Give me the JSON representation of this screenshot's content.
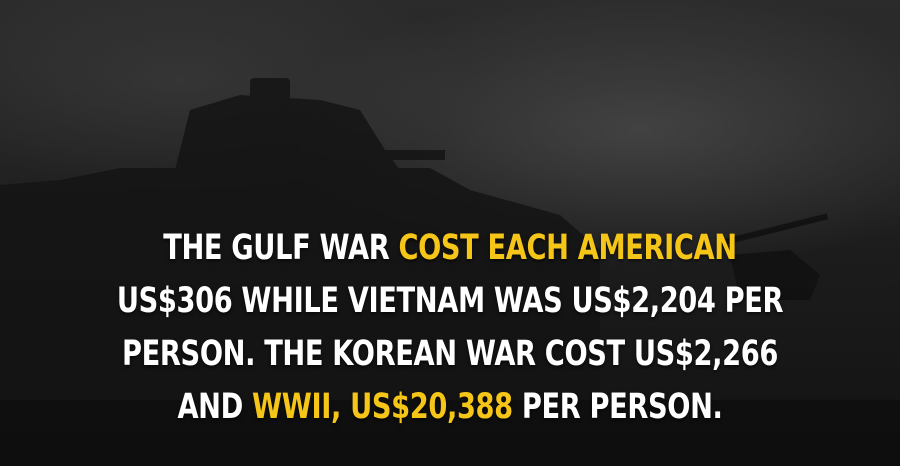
{
  "fact": {
    "line1": {
      "a": "THE GULF WAR ",
      "b": "COST EACH AMERICAN"
    },
    "line2": "US$306 WHILE VIETNAM WAS US$2,204 PER",
    "line3": "PERSON. THE KOREAN WAR COST US$2,266",
    "line4": {
      "a": "AND ",
      "b": "WWII, US$20,388",
      "c": " PER PERSON."
    }
  },
  "colors": {
    "text": "#ffffff",
    "highlight": "#f5c518",
    "background": "#1c1c1c"
  },
  "background_image": "tank-silhouette"
}
